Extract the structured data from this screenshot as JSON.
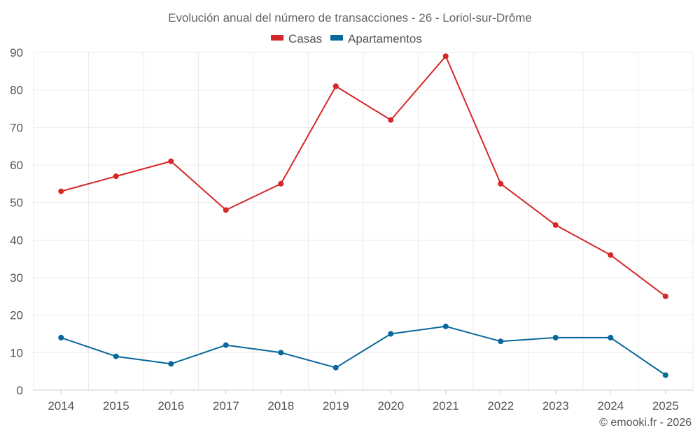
{
  "chart_data": {
    "type": "line",
    "title": "Evolución anual del número de transacciones - 26 - Loriol-sur-Drôme",
    "categories": [
      "2014",
      "2015",
      "2016",
      "2017",
      "2018",
      "2019",
      "2020",
      "2021",
      "2022",
      "2023",
      "2024",
      "2025"
    ],
    "y_ticks": [
      0,
      10,
      20,
      30,
      40,
      50,
      60,
      70,
      80,
      90
    ],
    "ylim": [
      0,
      90
    ],
    "grid": true,
    "legend_position": "top-center",
    "series": [
      {
        "name": "Casas",
        "color": "#d62728",
        "values": [
          53,
          57,
          61,
          48,
          55,
          81,
          72,
          89,
          55,
          44,
          36,
          25
        ]
      },
      {
        "name": "Apartamentos",
        "color": "#08689b",
        "values": [
          14,
          9,
          7,
          12,
          10,
          6,
          15,
          17,
          13,
          14,
          14,
          4
        ]
      }
    ],
    "credit": "© emooki.fr - 2026"
  }
}
